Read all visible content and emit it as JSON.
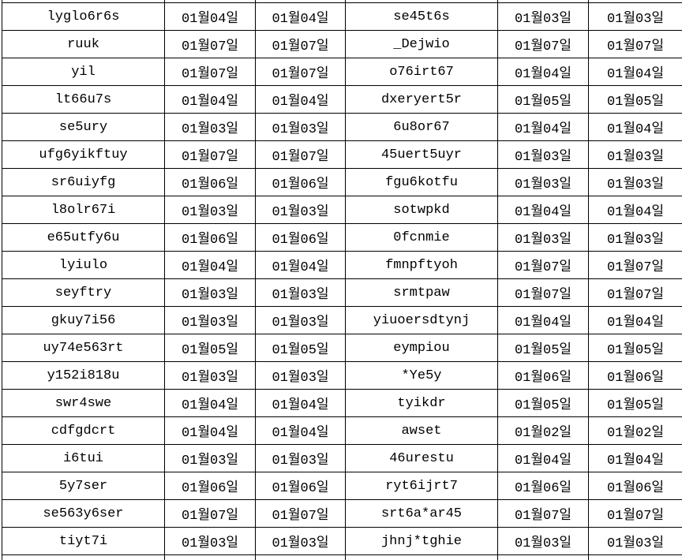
{
  "colors": {
    "background": "#ffffff",
    "border": "#000000",
    "text": "#000000"
  },
  "table": {
    "column_kinds": [
      "name",
      "date",
      "date",
      "name",
      "date",
      "date"
    ],
    "rows": [
      [
        "lyglo6r6s",
        "01월04일",
        "01월04일",
        "se45t6s",
        "01월03일",
        "01월03일"
      ],
      [
        "ruuk",
        "01월07일",
        "01월07일",
        "_Dejwio",
        "01월07일",
        "01월07일"
      ],
      [
        "yil",
        "01월07일",
        "01월07일",
        "o76irt67",
        "01월04일",
        "01월04일"
      ],
      [
        "lt66u7s",
        "01월04일",
        "01월04일",
        "dxeryert5r",
        "01월05일",
        "01월05일"
      ],
      [
        "se5ury",
        "01월03일",
        "01월03일",
        "6u8or67",
        "01월04일",
        "01월04일"
      ],
      [
        "ufg6yikftuy",
        "01월07일",
        "01월07일",
        "45uert5uyr",
        "01월03일",
        "01월03일"
      ],
      [
        "sr6uiyfg",
        "01월06일",
        "01월06일",
        "fgu6kotfu",
        "01월03일",
        "01월03일"
      ],
      [
        "l8olr67i",
        "01월03일",
        "01월03일",
        "sotwpkd",
        "01월04일",
        "01월04일"
      ],
      [
        "e65utfy6u",
        "01월06일",
        "01월06일",
        "0fcnmie",
        "01월03일",
        "01월03일"
      ],
      [
        "lyiulo",
        "01월04일",
        "01월04일",
        "fmnpftyoh",
        "01월07일",
        "01월07일"
      ],
      [
        "seyftry",
        "01월03일",
        "01월03일",
        "srmtpaw",
        "01월07일",
        "01월07일"
      ],
      [
        "gkuy7i56",
        "01월03일",
        "01월03일",
        "yiuoersdtynj",
        "01월04일",
        "01월04일"
      ],
      [
        "uy74e563rt",
        "01월05일",
        "01월05일",
        "eympiou",
        "01월05일",
        "01월05일"
      ],
      [
        "y152i818u",
        "01월03일",
        "01월03일",
        "*Ye5y",
        "01월06일",
        "01월06일"
      ],
      [
        "swr4swe",
        "01월04일",
        "01월04일",
        "tyikdr",
        "01월05일",
        "01월05일"
      ],
      [
        "cdfgdcrt",
        "01월04일",
        "01월04일",
        "awset",
        "01월02일",
        "01월02일"
      ],
      [
        "i6tui",
        "01월03일",
        "01월03일",
        "46urestu",
        "01월04일",
        "01월04일"
      ],
      [
        "5y7ser",
        "01월06일",
        "01월06일",
        "ryt6ijrt7",
        "01월06일",
        "01월06일"
      ],
      [
        "se563y6ser",
        "01월07일",
        "01월07일",
        "srt6a*ar45",
        "01월07일",
        "01월07일"
      ],
      [
        "tiyt7i",
        "01월03일",
        "01월03일",
        "jhnj*tghie",
        "01월03일",
        "01월03일"
      ]
    ]
  }
}
